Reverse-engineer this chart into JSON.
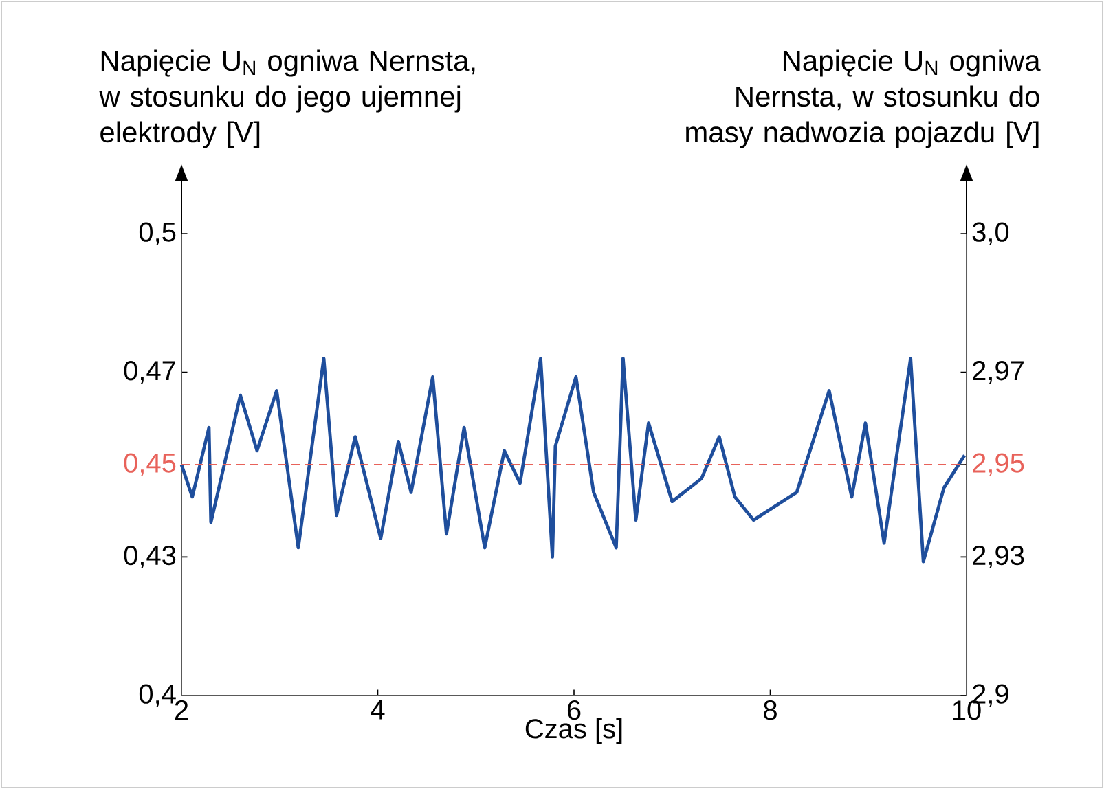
{
  "chart_data": {
    "type": "line",
    "xlabel": "Czas [s]",
    "ylabel": "Napięcie U$_{N}$ ogniwa Nernsta, w stosunku do jego ujemnej elektrody [V]",
    "y2label": "Napięcie U$_{N}$ ogniwa Nernsta, w stosunku do masy nadwozia pojazdu [V]",
    "xlim": [
      2,
      10
    ],
    "xticks": [
      2,
      4,
      6,
      8,
      10
    ],
    "ylim": [
      0.4,
      0.5
    ],
    "yticks": [
      {
        "value": 0.4,
        "label": "0,4"
      },
      {
        "value": 0.43,
        "label": "0,43"
      },
      {
        "value": 0.45,
        "label": "0,45"
      },
      {
        "value": 0.47,
        "label": "0,47"
      },
      {
        "value": 0.5,
        "label": "0,5"
      }
    ],
    "y2lim": [
      2.9,
      3.0
    ],
    "y2ticks": [
      {
        "value": 2.9,
        "label": "2,9"
      },
      {
        "value": 2.93,
        "label": "2,93"
      },
      {
        "value": 2.95,
        "label": "2,95"
      },
      {
        "value": 2.97,
        "label": "2,97"
      },
      {
        "value": 3.0,
        "label": "3,0"
      }
    ],
    "ref_lines": [
      {
        "axis": "y",
        "value": 0.45,
        "color": "#e8625a",
        "line_style": "dashed"
      }
    ],
    "grid": false,
    "marker": "none",
    "line_style": "solid",
    "series": [
      {
        "color": "#1f4e9c",
        "x": [
          2.0,
          2.11,
          2.28,
          2.3,
          2.6,
          2.77,
          2.97,
          3.19,
          3.45,
          3.58,
          3.77,
          4.03,
          4.21,
          4.34,
          4.56,
          4.7,
          4.88,
          5.09,
          5.29,
          5.45,
          5.66,
          5.78,
          5.81,
          6.02,
          6.2,
          6.43,
          6.5,
          6.63,
          6.76,
          7.0,
          7.3,
          7.48,
          7.64,
          7.83,
          8.27,
          8.6,
          8.83,
          8.97,
          9.16,
          9.43,
          9.56,
          9.77,
          9.98
        ],
        "values": [
          0.45,
          0.443,
          0.458,
          0.4375,
          0.465,
          0.453,
          0.466,
          0.432,
          0.473,
          0.439,
          0.456,
          0.434,
          0.455,
          0.444,
          0.469,
          0.435,
          0.458,
          0.432,
          0.453,
          0.446,
          0.473,
          0.43,
          0.454,
          0.469,
          0.444,
          0.432,
          0.473,
          0.438,
          0.459,
          0.442,
          0.447,
          0.456,
          0.443,
          0.438,
          0.444,
          0.466,
          0.443,
          0.459,
          0.433,
          0.473,
          0.429,
          0.445,
          0.452
        ]
      }
    ]
  }
}
